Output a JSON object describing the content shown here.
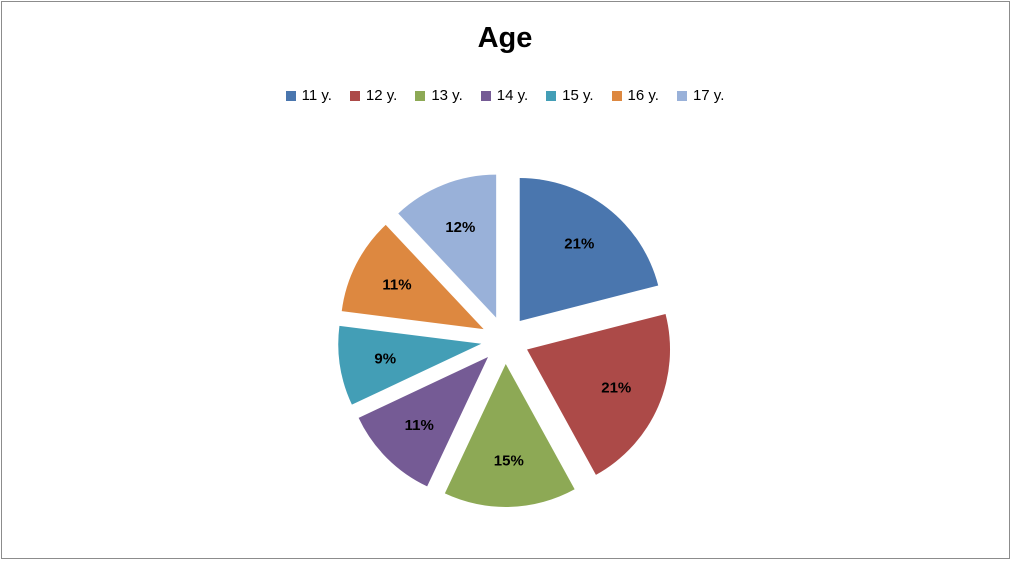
{
  "chart_data": {
    "type": "pie",
    "title": "Age",
    "legend_position": "top",
    "categories": [
      "11 y.",
      "12 y.",
      "13 y.",
      "14 y.",
      "15 y.",
      "16 y.",
      "17 y."
    ],
    "values": [
      21,
      21,
      15,
      11,
      9,
      11,
      12
    ],
    "value_labels": [
      "21%",
      "21%",
      "15%",
      "11%",
      "9%",
      "11%",
      "12%"
    ],
    "colors": [
      "#4A76AE",
      "#AC4A48",
      "#8DA955",
      "#755B95",
      "#439EB6",
      "#DD8840",
      "#99B1D9"
    ],
    "exploded": true
  }
}
